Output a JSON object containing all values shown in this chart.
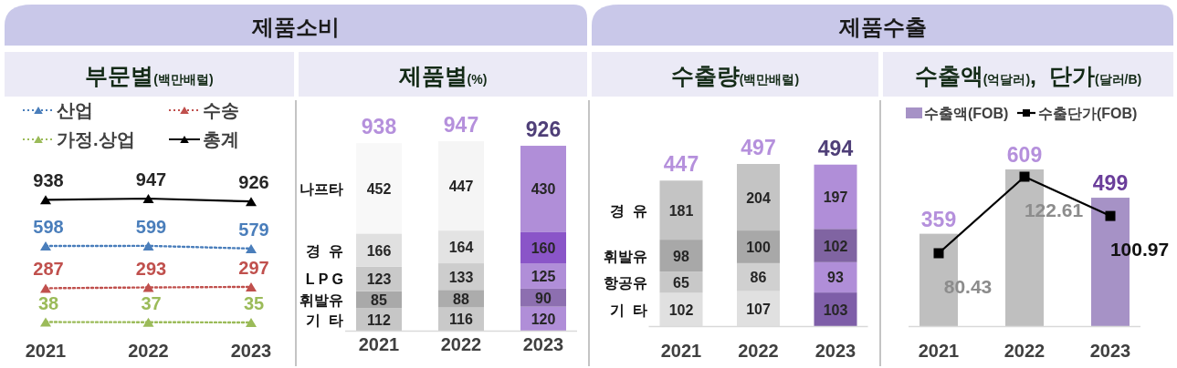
{
  "chart_data": [
    {
      "type": "line",
      "title": "제품소비",
      "subtitle": "부문별(백만배럴)",
      "categories": [
        "2021",
        "2022",
        "2023"
      ],
      "marker": "triangle",
      "data_labels": true,
      "legend": "top",
      "tick_labels": "x",
      "series": [
        {
          "name": "산업",
          "color": "#4a7ebb",
          "line_style": "dotted",
          "values": [
            598,
            599,
            579
          ]
        },
        {
          "name": "수송",
          "color": "#c0504d",
          "line_style": "dotted",
          "values": [
            287,
            293,
            297
          ]
        },
        {
          "name": "가정.상업",
          "color": "#9bbb59",
          "line_style": "dotted",
          "values": [
            38,
            37,
            35
          ]
        },
        {
          "name": "총계",
          "color": "#000000",
          "line_style": "solid",
          "values": [
            938,
            947,
            926
          ]
        }
      ]
    },
    {
      "type": "bar",
      "stacked": true,
      "subtitle": "제품별(%)",
      "categories": [
        "2021",
        "2022",
        "2023"
      ],
      "data_labels": true,
      "tick_labels": "x",
      "totals": [
        "938",
        "947",
        "926"
      ],
      "series": [
        {
          "name": "기  타",
          "colors": [
            "#c6c6c6",
            "#c9c9c9",
            "#b08ed8"
          ],
          "values": [
            112,
            116,
            120
          ]
        },
        {
          "name": "휘발유",
          "colors": [
            "#a9a9a9",
            "#acacac",
            "#8d6fb0"
          ],
          "values": [
            85,
            88,
            90
          ]
        },
        {
          "name": "L P G",
          "colors": [
            "#c9c9c9",
            "#cdcdcd",
            "#b08ed8"
          ],
          "values": [
            123,
            133,
            125
          ]
        },
        {
          "name": "경  유",
          "colors": [
            "#e0e0e0",
            "#e3e3e3",
            "#8a55c8"
          ],
          "values": [
            166,
            164,
            160
          ]
        },
        {
          "name": "나프타",
          "colors": [
            "#f8f8f8",
            "#f5f5f5",
            "#b08ed8"
          ],
          "values": [
            452,
            447,
            430
          ]
        }
      ]
    },
    {
      "type": "bar",
      "stacked": true,
      "title": "제품수출",
      "subtitle": "수출량(백만배럴)",
      "categories": [
        "2021",
        "2022",
        "2023"
      ],
      "data_labels": true,
      "tick_labels": "x",
      "totals": [
        "447",
        "497",
        "494"
      ],
      "series": [
        {
          "name": "기  타",
          "colors": [
            "#e0e0e0",
            "#e0e0e0",
            "#7e5ea8"
          ],
          "values": [
            102,
            107,
            103
          ]
        },
        {
          "name": "항공유",
          "colors": [
            "#c8c8c8",
            "#d0d0d0",
            "#b08ed8"
          ],
          "values": [
            65,
            86,
            93
          ]
        },
        {
          "name": "휘발유",
          "colors": [
            "#a8a8a8",
            "#a8a8a8",
            "#8064a2"
          ],
          "values": [
            98,
            100,
            102
          ]
        },
        {
          "name": "경  유",
          "colors": [
            "#c4c4c4",
            "#c4c4c4",
            "#b08ed8"
          ],
          "values": [
            181,
            204,
            197
          ]
        }
      ]
    },
    {
      "type": "bar",
      "subtitle": "수출액(억달러),  단가(달러/B)",
      "categories": [
        "2021",
        "2022",
        "2023"
      ],
      "marker": "square",
      "data_labels": true,
      "legend": "top",
      "tick_labels": "x",
      "series": [
        {
          "name": "수출액(FOB)",
          "type": "bar",
          "colors": [
            "#bfbfbf",
            "#bfbfbf",
            "#a692c6"
          ],
          "values": [
            359,
            609,
            499
          ]
        },
        {
          "name": "수출단가(FOB)",
          "type": "line",
          "axis": "y2",
          "color": "#000000",
          "values": [
            80.43,
            122.61,
            100.97
          ]
        }
      ]
    }
  ]
}
